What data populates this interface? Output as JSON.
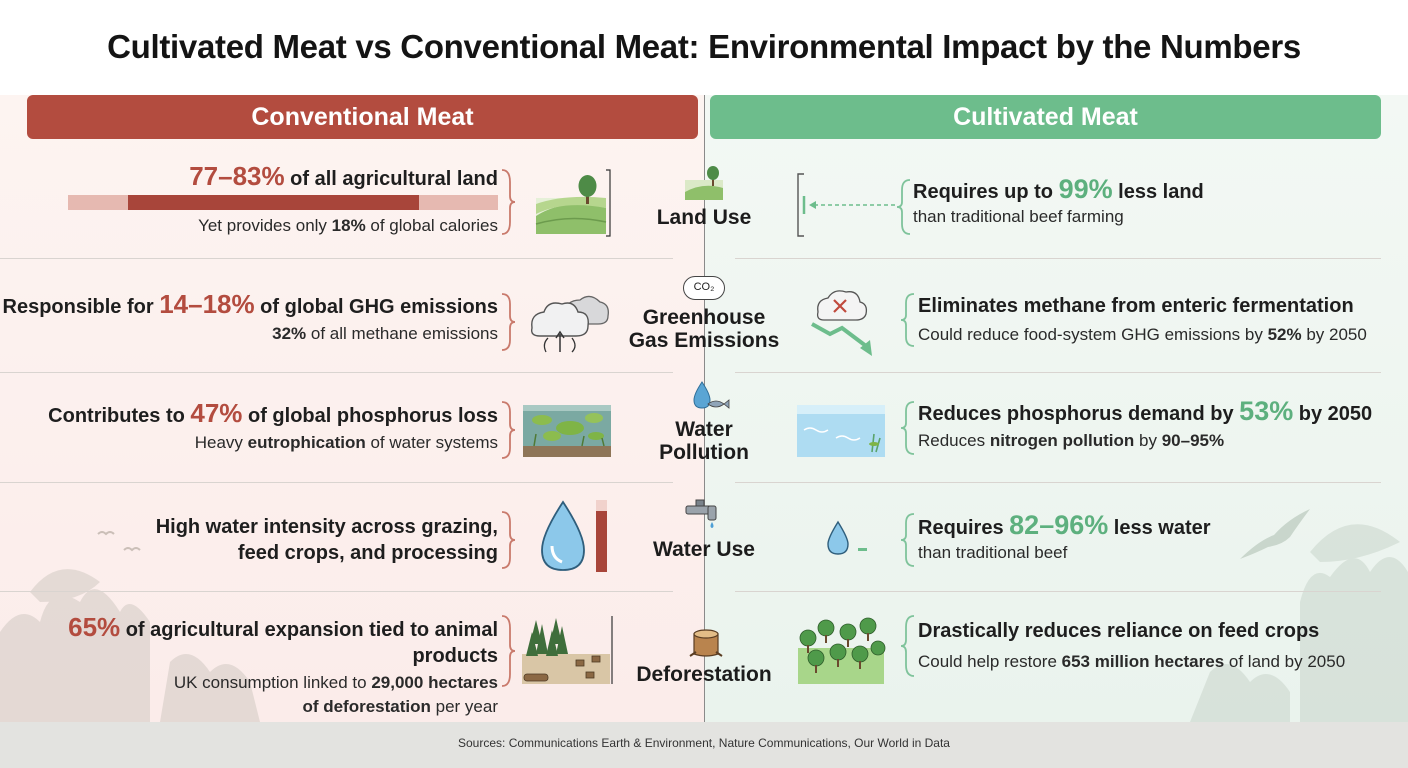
{
  "title": "Cultivated Meat vs Conventional Meat: Environmental Impact by the Numbers",
  "headers": {
    "conventional": "Conventional Meat",
    "cultivated": "Cultivated Meat"
  },
  "categories": {
    "land": "Land Use",
    "ghg_1": "Greenhouse",
    "ghg_2": "Gas Emissions",
    "water_pollution_1": "Water",
    "water_pollution_2": "Pollution",
    "water_use": "Water Use",
    "deforestation": "Deforestation"
  },
  "conventional": {
    "land": {
      "value": "77–83%",
      "main_rest": " of all agricultural land",
      "sub_pre": "Yet provides only ",
      "sub_bold": "18%",
      "sub_post": " of global calories"
    },
    "ghg": {
      "main_pre": "Responsible for ",
      "value": "14–18%",
      "main_rest": " of global GHG emissions",
      "sub_bold": "32%",
      "sub_post": " of all methane emissions"
    },
    "water_pollution": {
      "main_pre": "Contributes to ",
      "value": "47%",
      "main_rest": " of global phosphorus loss",
      "sub_pre": "Heavy ",
      "sub_bold": "eutrophication",
      "sub_post": " of water systems"
    },
    "water_use": {
      "line1": "High water intensity across grazing,",
      "line2": "feed crops, and processing"
    },
    "deforestation": {
      "value": "65%",
      "main_rest": " of agricultural expansion tied to animal products",
      "sub_pre": "UK consumption linked to ",
      "sub_bold": "29,000 hectares",
      "sub_bold2": "of deforestation",
      "sub_post": " per year"
    }
  },
  "cultivated": {
    "land": {
      "main_pre": "Requires up to ",
      "value": "99%",
      "main_rest": " less land",
      "sub": "than traditional beef farming"
    },
    "ghg": {
      "main": "Eliminates methane from enteric fermentation",
      "sub_pre": "Could reduce food-system GHG emissions by ",
      "sub_bold": "52%",
      "sub_post": " by 2050"
    },
    "water_pollution": {
      "main_pre": "Reduces phosphorus demand by ",
      "value": "53%",
      "main_rest": " by 2050",
      "sub_pre": "Reduces ",
      "sub_bold": "nitrogen pollution",
      "sub_mid": " by ",
      "sub_bold2": "90–95%"
    },
    "water_use": {
      "main_pre": "Requires ",
      "value": "82–96%",
      "main_rest": " less water",
      "sub": "than traditional beef"
    },
    "deforestation": {
      "main": "Drastically reduces reliance on feed crops",
      "sub_pre": "Could help restore ",
      "sub_bold": "653 million hectares",
      "sub_post": " of land by 2050"
    }
  },
  "land_share_bar": {
    "conventional_low": 0.77,
    "conventional_high": 0.83
  },
  "water_intensity_bar_fill": 0.85,
  "co2_label": "CO₂",
  "sources": "Sources: Communications Earth & Environment, Nature Communications, Our World in Data",
  "colors": {
    "conventional": "#b34c3f",
    "cultivated": "#6dbd8c",
    "value_red": "#b34c3f",
    "value_green": "#5db07e"
  },
  "icons": [
    "farmland-tree-icon",
    "cloud-arrows-icon",
    "eutrophic-pond-icon",
    "large-water-drop-icon",
    "deforested-stumps-icon",
    "co2-cloud-icon",
    "water-drop-fish-icon",
    "faucet-icon",
    "tree-stump-icon",
    "land-arrow-icon",
    "cloud-x-down-arrow-icon",
    "clean-water-icon",
    "small-water-drop-icon",
    "tree-grove-icon"
  ]
}
